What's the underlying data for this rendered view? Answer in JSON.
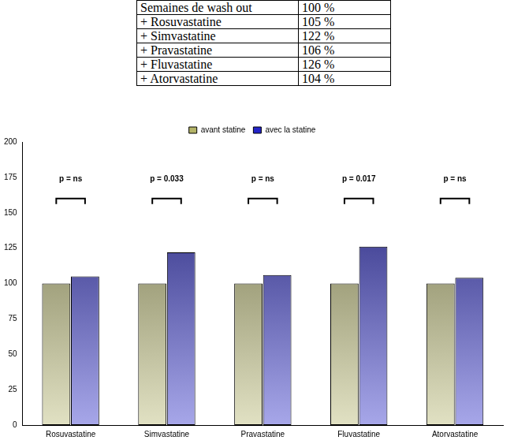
{
  "table": {
    "rows": [
      [
        "Semaines de wash out",
        "100 %"
      ],
      [
        "+ Rosuvastatine",
        "105 %"
      ],
      [
        "+ Simvastatine",
        "122 %"
      ],
      [
        "+ Pravastatine",
        "106 %"
      ],
      [
        "+ Fluvastatine",
        "126 %"
      ],
      [
        "+ Atorvastatine",
        "104 %"
      ]
    ]
  },
  "chart_data": {
    "type": "bar",
    "categories": [
      "Rosuvastatine",
      "Simvastatine",
      "Pravastatine",
      "Fluvastatine",
      "Atorvastatine"
    ],
    "series": [
      {
        "name": "avant statine",
        "color": "#b4b468",
        "values": [
          100,
          100,
          100,
          100,
          100
        ]
      },
      {
        "name": "avec la statine",
        "color": "#2424c8",
        "values": [
          105,
          122,
          106,
          126,
          104
        ]
      }
    ],
    "p_values": [
      "p = ns",
      "p = 0.033",
      "p = ns",
      "p = 0.017",
      "p = ns"
    ],
    "ylim": [
      0,
      200
    ],
    "yticks": [
      0,
      25,
      50,
      75,
      100,
      125,
      150,
      175,
      200
    ],
    "grid": false,
    "legend": "top"
  }
}
